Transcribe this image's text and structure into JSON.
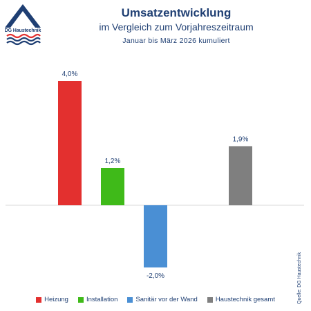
{
  "logo": {
    "text": "DG Haustechnik"
  },
  "header": {
    "title": "Umsatzentwicklung",
    "subtitle": "im Vergleich zum Vorjahreszeitraum",
    "period": "Januar bis März 2026 kumuliert"
  },
  "chart_data": {
    "type": "bar",
    "title": "Umsatzentwicklung",
    "categories": [
      "Heizung",
      "Installation",
      "Sanitär vor der Wand",
      "Haustechnik gesamt"
    ],
    "values": [
      4.0,
      1.2,
      -2.0,
      1.9
    ],
    "data_labels": [
      "4,0%",
      "1,2%",
      "-2,0%",
      "1,9%"
    ],
    "colors": [
      "#e3302f",
      "#3fba19",
      "#4a8fd4",
      "#7f7f7f"
    ],
    "ylim": [
      -2.0,
      4.0
    ],
    "grid": false,
    "legend": "bottom",
    "xlabel": "",
    "ylabel": ""
  },
  "legend": [
    {
      "label": "Heizung",
      "color": "#e3302f"
    },
    {
      "label": "Installation",
      "color": "#3fba19"
    },
    {
      "label": "Sanitär vor der Wand",
      "color": "#4a8fd4"
    },
    {
      "label": "Haustechnik gesamt",
      "color": "#7f7f7f"
    }
  ],
  "source": "Quelle: DG Haustechnik"
}
